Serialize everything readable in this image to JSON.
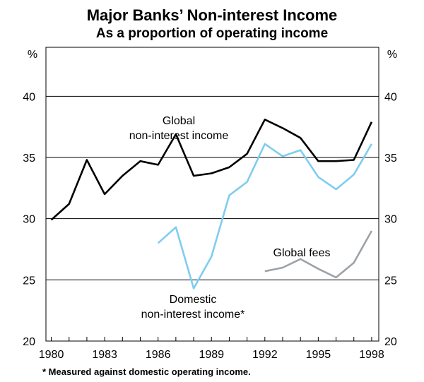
{
  "chart_data": {
    "type": "line",
    "title": "Major Banks’ Non-interest Income",
    "subtitle": "As a proportion of operating income",
    "y_unit_left": "%",
    "y_unit_right": "%",
    "ylim": [
      20,
      44
    ],
    "xlim": [
      1979.7,
      1998.4
    ],
    "y_ticks": [
      20,
      25,
      30,
      35,
      40
    ],
    "x_ticks": [
      1980,
      1983,
      1986,
      1989,
      1992,
      1995,
      1998
    ],
    "grid": true,
    "footnote": "* Measured against domestic operating income.",
    "series": [
      {
        "name_lines": [
          "Global",
          "non-interest income"
        ],
        "color": "#000000",
        "x": [
          1980,
          1981,
          1982,
          1983,
          1984,
          1985,
          1986,
          1987,
          1988,
          1989,
          1990,
          1991,
          1992,
          1993,
          1994,
          1995,
          1996,
          1997,
          1998
        ],
        "y": [
          29.9,
          31.2,
          34.8,
          32.0,
          33.5,
          34.7,
          34.4,
          36.9,
          33.5,
          33.7,
          34.2,
          35.3,
          38.1,
          37.4,
          36.6,
          34.7,
          34.7,
          34.8,
          37.9
        ]
      },
      {
        "name_lines": [
          "Domestic",
          "non-interest income*"
        ],
        "color": "#7fcdee",
        "x": [
          1986,
          1987,
          1988,
          1989,
          1990,
          1991,
          1992,
          1993,
          1994,
          1995,
          1996,
          1997,
          1998
        ],
        "y": [
          28.0,
          29.3,
          24.3,
          26.9,
          31.9,
          33.0,
          36.1,
          35.1,
          35.6,
          33.4,
          32.4,
          33.6,
          36.1
        ]
      },
      {
        "name_lines": [
          "Global fees"
        ],
        "color": "#9ba3a9",
        "x": [
          1992,
          1993,
          1994,
          1995,
          1996,
          1997,
          1998
        ],
        "y": [
          25.7,
          26.0,
          26.7,
          25.9,
          25.2,
          26.4,
          29.0
        ]
      }
    ]
  }
}
